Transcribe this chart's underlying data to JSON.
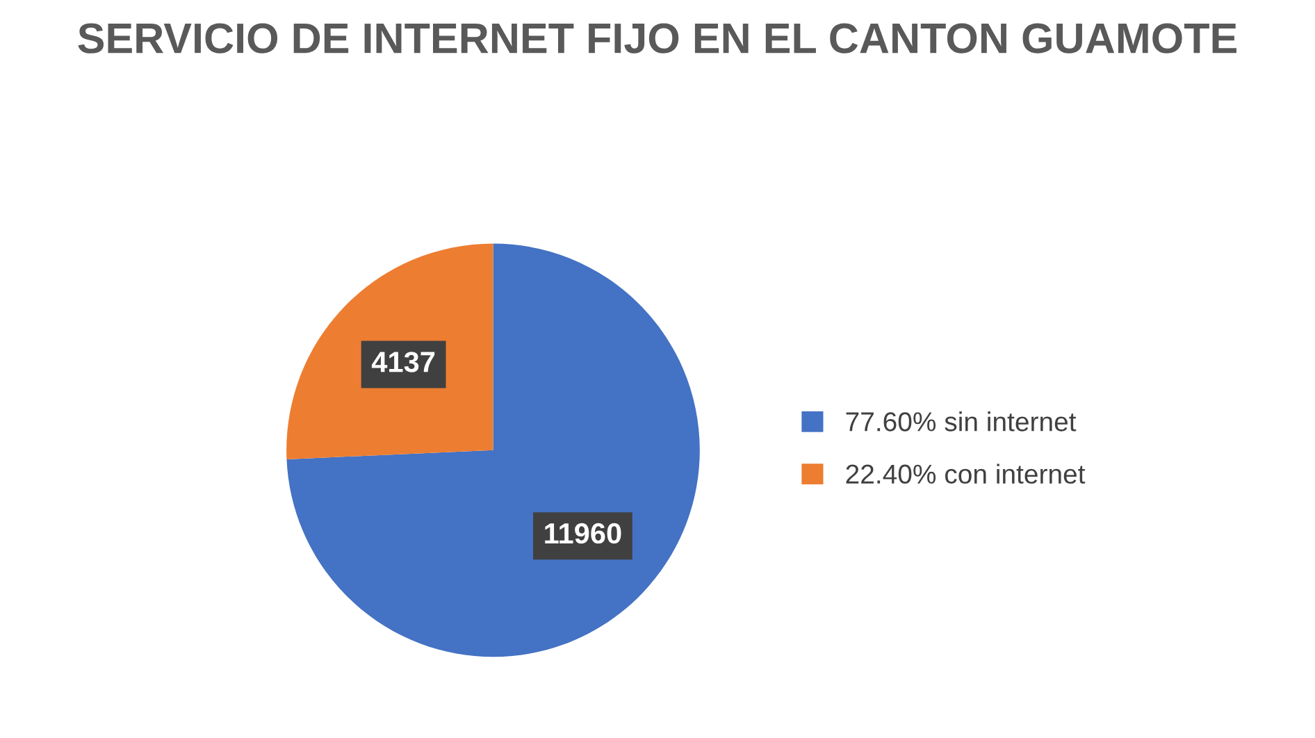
{
  "chart_data": {
    "type": "pie",
    "title": "SERVICIO DE INTERNET FIJO EN EL CANTON GUAMOTE",
    "categories": [
      "77.60% sin internet",
      "22.40% con internet"
    ],
    "values": [
      11960,
      4137
    ],
    "colors": [
      "#4472c4",
      "#ed7d31"
    ],
    "data_labels": true,
    "legend": "right"
  }
}
